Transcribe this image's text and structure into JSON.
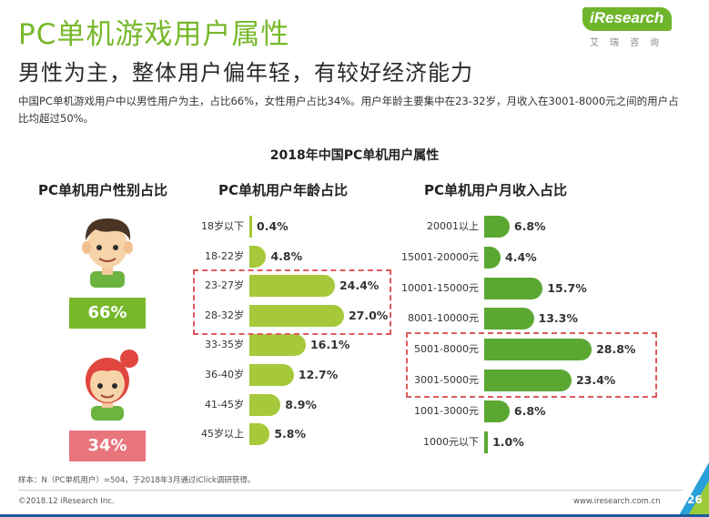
{
  "header": {
    "title": "PC单机游戏用户属性",
    "subtitle": "男性为主，整体用户偏年轻，有较好经济能力",
    "description": "中国PC单机游戏用户中以男性用户为主，占比66%，女性用户占比34%。用户年龄主要集中在23-32岁，月收入在3001-8000元之间的用户占比均超过50%。"
  },
  "logo": {
    "brand": "iResearch",
    "cn": "艾瑞咨询"
  },
  "section_title": "2018年中国PC单机用户属性",
  "gender": {
    "heading": "PC单机用户性别占比",
    "male_pct": "66%",
    "female_pct": "34%",
    "colors": {
      "male": "#77b82a",
      "female": "#e8747c"
    }
  },
  "age": {
    "heading": "PC单机用户年龄占比",
    "color": "#a5c93a",
    "highlight": [
      "23-27岁",
      "28-32岁"
    ],
    "rows": [
      {
        "label": "18岁以下",
        "value": 0.4,
        "value_label": "0.4%"
      },
      {
        "label": "18-22岁",
        "value": 4.8,
        "value_label": "4.8%"
      },
      {
        "label": "23-27岁",
        "value": 24.4,
        "value_label": "24.4%"
      },
      {
        "label": "28-32岁",
        "value": 27.0,
        "value_label": "27.0%"
      },
      {
        "label": "33-35岁",
        "value": 16.1,
        "value_label": "16.1%"
      },
      {
        "label": "36-40岁",
        "value": 12.7,
        "value_label": "12.7%"
      },
      {
        "label": "41-45岁",
        "value": 8.9,
        "value_label": "8.9%"
      },
      {
        "label": "45岁以上",
        "value": 5.8,
        "value_label": "5.8%"
      }
    ]
  },
  "income": {
    "heading": "PC单机用户月收入占比",
    "color": "#5aa832",
    "highlight": [
      "5001-8000元",
      "3001-5000元"
    ],
    "rows": [
      {
        "label": "20001以上",
        "value": 6.8,
        "value_label": "6.8%"
      },
      {
        "label": "15001-20000元",
        "value": 4.4,
        "value_label": "4.4%"
      },
      {
        "label": "10001-15000元",
        "value": 15.7,
        "value_label": "15.7%"
      },
      {
        "label": "8001-10000元",
        "value": 13.3,
        "value_label": "13.3%"
      },
      {
        "label": "5001-8000元",
        "value": 28.8,
        "value_label": "28.8%"
      },
      {
        "label": "3001-5000元",
        "value": 23.4,
        "value_label": "23.4%"
      },
      {
        "label": "1001-3000元",
        "value": 6.8,
        "value_label": "6.8%"
      },
      {
        "label": "1000元以下",
        "value": 1.0,
        "value_label": "1.0%"
      }
    ]
  },
  "footer": {
    "note": "样本：N（PC单机用户）=504，于2018年3月通过iClick调研获得。",
    "copyright": "©2018.12 iResearch Inc.",
    "url": "www.iresearch.com.cn",
    "page": "26"
  }
}
